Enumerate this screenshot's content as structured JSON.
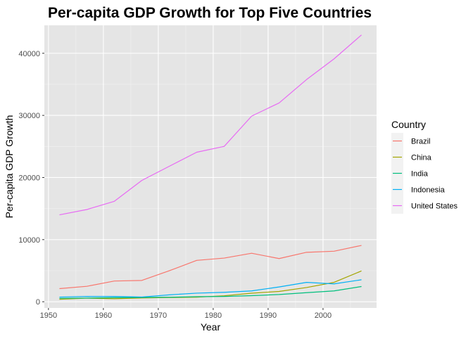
{
  "chart_data": {
    "type": "line",
    "title": "Per-capita GDP Growth for Top Five Countries",
    "xlabel": "Year",
    "ylabel": "Per-capita GDP Growth",
    "x": [
      1952,
      1957,
      1962,
      1967,
      1972,
      1977,
      1982,
      1987,
      1992,
      1997,
      2002,
      2007
    ],
    "xlim": [
      1949.25,
      2009.75
    ],
    "ylim": [
      -1000,
      44500
    ],
    "x_ticks": [
      1950,
      1960,
      1970,
      1980,
      1990,
      2000
    ],
    "x_tick_labels": [
      "1950",
      "1960",
      "1970",
      "1980",
      "1990",
      "2000"
    ],
    "y_ticks": [
      0,
      10000,
      20000,
      30000,
      40000
    ],
    "y_tick_labels": [
      "0",
      "10000",
      "20000",
      "30000",
      "40000"
    ],
    "grid": true,
    "background": "#e5e5e5",
    "legend": {
      "title": "Country",
      "position": "right"
    },
    "series": [
      {
        "name": "Brazil",
        "color": "#f8766d",
        "values": [
          2109,
          2487,
          3337,
          3430,
          4986,
          6660,
          7031,
          7807,
          6950,
          7958,
          8131,
          9066
        ]
      },
      {
        "name": "China",
        "color": "#a3a500",
        "values": [
          400,
          576,
          488,
          613,
          677,
          741,
          962,
          1379,
          1656,
          2289,
          3119,
          4959
        ]
      },
      {
        "name": "India",
        "color": "#00bf7d",
        "values": [
          547,
          590,
          658,
          701,
          724,
          813,
          856,
          977,
          1164,
          1459,
          1747,
          2452
        ]
      },
      {
        "name": "Indonesia",
        "color": "#00b0f6",
        "values": [
          750,
          859,
          849,
          762,
          1111,
          1383,
          1517,
          1748,
          2383,
          3119,
          2874,
          3541
        ]
      },
      {
        "name": "United States",
        "color": "#e76bf3",
        "values": [
          13990,
          14847,
          16173,
          19530,
          21806,
          24073,
          25010,
          29884,
          32004,
          35767,
          39097,
          42952
        ]
      }
    ]
  }
}
